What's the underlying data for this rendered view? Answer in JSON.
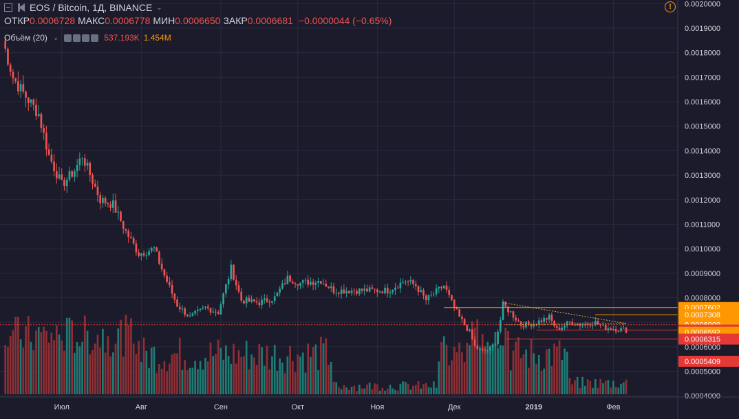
{
  "header": {
    "symbol": "EOS / Bitcoin, 1Д, BINANCE",
    "open_label": "ОТКР",
    "open_value": "0.0006728",
    "high_label": "МАКС",
    "high_value": "0.0006778",
    "low_label": "МИН",
    "low_value": "0.0006650",
    "close_label": "ЗАКР",
    "close_value": "0.0006681",
    "change": "−0.0000044 (−0.65%)"
  },
  "volume_legend": {
    "title": "Объём (20)",
    "value_1": "537.193K",
    "value_2": "1.454M"
  },
  "alert_icon": "!",
  "colors": {
    "background": "#1c1b2b",
    "grid": "#2a2a3d",
    "up": "#26a69a",
    "down": "#ef5350",
    "up_volume": "#1e7c74",
    "down_volume": "#8e2f35",
    "orange": "#ff9800",
    "red_line": "#e53935",
    "trend": "#d4b23a",
    "axis_text": "#d1d4dc"
  },
  "chart_data": {
    "type": "candlestick",
    "title": "EOS / Bitcoin, 1Д, BINANCE",
    "ylim": [
      0.000395,
      0.002015
    ],
    "y_ticks": [
      "0.0020000",
      "0.0019000",
      "0.0018000",
      "0.0017000",
      "0.0016000",
      "0.0015000",
      "0.0014000",
      "0.0013000",
      "0.0012000",
      "0.0011000",
      "0.0010000",
      "0.0009000",
      "0.0008000",
      "0.0007000",
      "0.0006000",
      "0.0005000",
      "0.0004000"
    ],
    "x_ticks": [
      {
        "label": "Июл",
        "date": "2018-07-01"
      },
      {
        "label": "Авг",
        "date": "2018-08-01"
      },
      {
        "label": "Сен",
        "date": "2018-09-01"
      },
      {
        "label": "Окт",
        "date": "2018-10-01"
      },
      {
        "label": "Ноя",
        "date": "2018-11-01"
      },
      {
        "label": "Дек",
        "date": "2018-12-01"
      },
      {
        "label": "2019",
        "date": "2019-01-01"
      },
      {
        "label": "Фев",
        "date": "2019-02-01"
      }
    ],
    "date_range": [
      "2018-06-08",
      "2019-02-06"
    ],
    "close_anchors": [
      {
        "date": "2018-06-08",
        "close": 0.00185
      },
      {
        "date": "2018-06-12",
        "close": 0.0017
      },
      {
        "date": "2018-06-15",
        "close": 0.00165
      },
      {
        "date": "2018-06-22",
        "close": 0.00155
      },
      {
        "date": "2018-06-26",
        "close": 0.00138
      },
      {
        "date": "2018-07-01",
        "close": 0.00126
      },
      {
        "date": "2018-07-06",
        "close": 0.00132
      },
      {
        "date": "2018-07-09",
        "close": 0.00138
      },
      {
        "date": "2018-07-16",
        "close": 0.0012
      },
      {
        "date": "2018-07-21",
        "close": 0.00118
      },
      {
        "date": "2018-07-26",
        "close": 0.00107
      },
      {
        "date": "2018-07-31",
        "close": 0.00098
      },
      {
        "date": "2018-08-06",
        "close": 0.001
      },
      {
        "date": "2018-08-10",
        "close": 0.00089
      },
      {
        "date": "2018-08-15",
        "close": 0.00077
      },
      {
        "date": "2018-08-20",
        "close": 0.00072
      },
      {
        "date": "2018-08-26",
        "close": 0.00076
      },
      {
        "date": "2018-08-31",
        "close": 0.00074
      },
      {
        "date": "2018-09-05",
        "close": 0.00092
      },
      {
        "date": "2018-09-09",
        "close": 0.00079
      },
      {
        "date": "2018-09-16",
        "close": 0.00078
      },
      {
        "date": "2018-09-22",
        "close": 0.0008
      },
      {
        "date": "2018-09-27",
        "close": 0.00088
      },
      {
        "date": "2018-10-02",
        "close": 0.00086
      },
      {
        "date": "2018-10-10",
        "close": 0.00087
      },
      {
        "date": "2018-10-15",
        "close": 0.00083
      },
      {
        "date": "2018-10-25",
        "close": 0.00083
      },
      {
        "date": "2018-11-05",
        "close": 0.00083
      },
      {
        "date": "2018-11-12",
        "close": 0.00087
      },
      {
        "date": "2018-11-16",
        "close": 0.00085
      },
      {
        "date": "2018-11-20",
        "close": 0.00079
      },
      {
        "date": "2018-11-27",
        "close": 0.00085
      },
      {
        "date": "2018-11-30",
        "close": 0.00078
      },
      {
        "date": "2018-12-03",
        "close": 0.00072
      },
      {
        "date": "2018-12-07",
        "close": 0.00066
      },
      {
        "date": "2018-12-09",
        "close": 0.0006
      },
      {
        "date": "2018-12-12",
        "close": 0.00058
      },
      {
        "date": "2018-12-15",
        "close": 0.00059
      },
      {
        "date": "2018-12-17",
        "close": 0.00062
      },
      {
        "date": "2018-12-19",
        "close": 0.00071
      },
      {
        "date": "2018-12-20",
        "close": 0.00077
      },
      {
        "date": "2018-12-23",
        "close": 0.00074
      },
      {
        "date": "2018-12-27",
        "close": 0.00069
      },
      {
        "date": "2019-01-01",
        "close": 0.000695
      },
      {
        "date": "2019-01-07",
        "close": 0.00072
      },
      {
        "date": "2019-01-10",
        "close": 0.00067
      },
      {
        "date": "2019-01-15",
        "close": 0.0007
      },
      {
        "date": "2019-01-20",
        "close": 0.00069
      },
      {
        "date": "2019-01-25",
        "close": 0.0007
      },
      {
        "date": "2019-01-28",
        "close": 0.00068
      },
      {
        "date": "2019-02-06",
        "close": 0.0006681
      }
    ],
    "volume_series": {
      "name": "Объём (20)",
      "max": 1454000
    },
    "price_lines": [
      {
        "value": 0.0007602,
        "label": "0.0007602",
        "color": "orange",
        "from": "2018-11-27"
      },
      {
        "value": 0.0007308,
        "label": "0.0007308",
        "color": "orange",
        "from": "2019-01-25"
      },
      {
        "value": 0.00069,
        "label": "0.0006900",
        "color": "orange",
        "dotted": true
      },
      {
        "value": 0.0006681,
        "label": "0.0006681",
        "color": "red",
        "from": "2019-01-02"
      },
      {
        "value": 0.0006592,
        "label": "0.0006592",
        "color": "orange"
      },
      {
        "value": 0.0006315,
        "label": "0.0006315",
        "color": "red",
        "from": "2018-12-21"
      },
      {
        "value": 0.0005409,
        "label": "0.0005409",
        "color": "red"
      }
    ],
    "trendlines": [
      {
        "from_date": "2018-12-20",
        "from_value": 0.00078,
        "to_date": "2019-02-06",
        "to_value": 0.000695
      },
      {
        "from_date": "2018-12-21",
        "from_value": 0.00069,
        "to_date": "2019-02-06",
        "to_value": 0.000694
      }
    ]
  }
}
